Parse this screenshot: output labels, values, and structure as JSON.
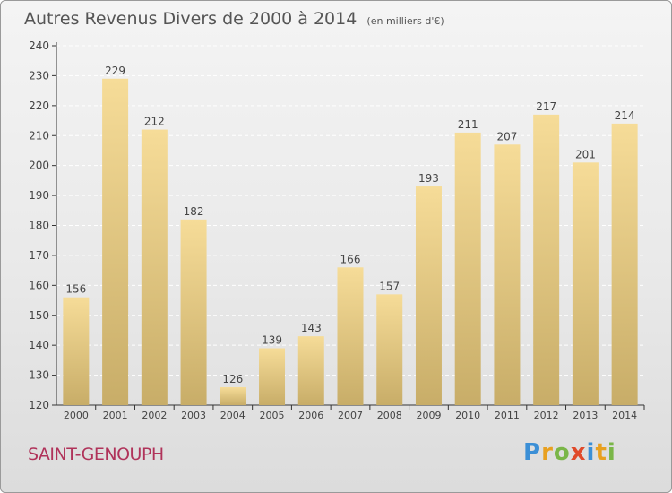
{
  "title": "Autres Revenus Divers de 2000 à 2014",
  "unit": "(en milliers d'€)",
  "commune": "SAINT-GENOUPH",
  "logo": {
    "text": "Proxiti",
    "letters": [
      {
        "ch": "P",
        "color": "#3b8fd6"
      },
      {
        "ch": "r",
        "color": "#e8a020"
      },
      {
        "ch": "o",
        "color": "#7ab648"
      },
      {
        "ch": "x",
        "color": "#e04a2a"
      },
      {
        "ch": "i",
        "color": "#3b8fd6"
      },
      {
        "ch": "t",
        "color": "#e8a020"
      },
      {
        "ch": "i",
        "color": "#7ab648"
      }
    ]
  },
  "colors": {
    "bar_top": "#f6dc98",
    "bar_bottom": "#c8ad68",
    "axis": "#333333",
    "text": "#444444"
  },
  "chart_data": {
    "type": "bar",
    "title": "Autres Revenus Divers de 2000 à 2014",
    "categories": [
      "2000",
      "2001",
      "2002",
      "2003",
      "2004",
      "2005",
      "2006",
      "2007",
      "2008",
      "2009",
      "2010",
      "2011",
      "2012",
      "2013",
      "2014"
    ],
    "values": [
      156,
      229,
      212,
      182,
      126,
      139,
      143,
      166,
      157,
      193,
      211,
      207,
      217,
      201,
      214
    ],
    "ylim": [
      120,
      240
    ],
    "yticks": [
      120,
      130,
      140,
      150,
      160,
      170,
      180,
      190,
      200,
      210,
      220,
      230,
      240
    ],
    "grid": true
  }
}
